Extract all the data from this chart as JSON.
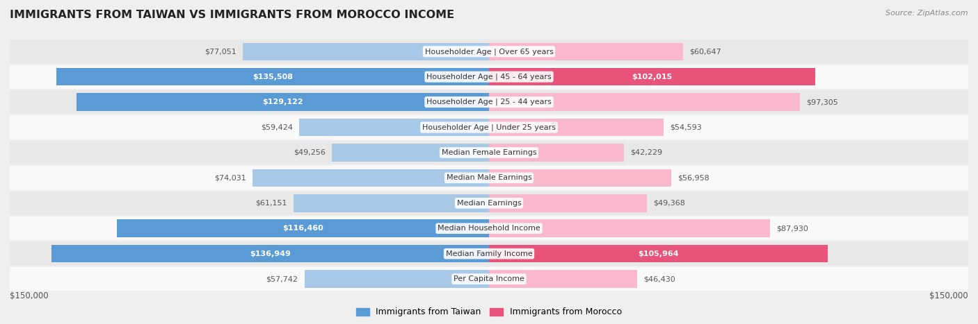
{
  "title": "IMMIGRANTS FROM TAIWAN VS IMMIGRANTS FROM MOROCCO INCOME",
  "source": "Source: ZipAtlas.com",
  "categories": [
    "Per Capita Income",
    "Median Family Income",
    "Median Household Income",
    "Median Earnings",
    "Median Male Earnings",
    "Median Female Earnings",
    "Householder Age | Under 25 years",
    "Householder Age | 25 - 44 years",
    "Householder Age | 45 - 64 years",
    "Householder Age | Over 65 years"
  ],
  "taiwan_values": [
    57742,
    136949,
    116460,
    61151,
    74031,
    49256,
    59424,
    129122,
    135508,
    77051
  ],
  "morocco_values": [
    46430,
    105964,
    87930,
    49368,
    56958,
    42229,
    54593,
    97305,
    102015,
    60647
  ],
  "taiwan_color_light": "#a8c8e8",
  "taiwan_color_dark": "#5b9bd5",
  "morocco_color_light": "#f9b8cc",
  "morocco_color_dark": "#e8537a",
  "max_value": 150000,
  "x_label_left": "$150,000",
  "x_label_right": "$150,000",
  "background_color": "#efefef",
  "row_bg_light": "#e8e8e8",
  "row_bg_white": "#f9f9f9",
  "taiwan_threshold": 100000,
  "morocco_threshold": 100000
}
